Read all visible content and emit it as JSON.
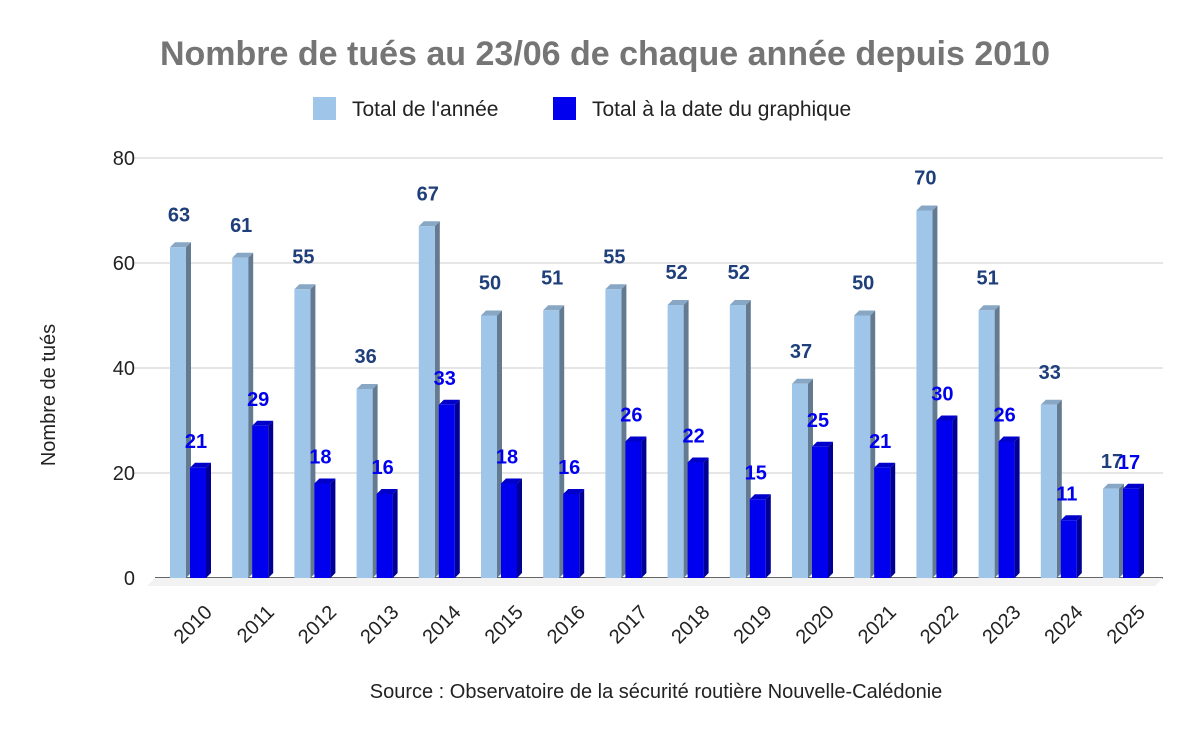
{
  "chart_data": {
    "type": "bar",
    "title": "Nombre de tués au 23/06 de chaque année depuis 2010",
    "ylabel": "Nombre de tués",
    "xlabel": "",
    "source": "Source : Observatoire de la sécurité routière Nouvelle-Calédonie",
    "ylim": [
      0,
      80
    ],
    "yticks": [
      0,
      20,
      40,
      60,
      80
    ],
    "grid": true,
    "legend_position": "top",
    "categories": [
      "2010",
      "2011",
      "2012",
      "2013",
      "2014",
      "2015",
      "2016",
      "2017",
      "2018",
      "2019",
      "2020",
      "2021",
      "2022",
      "2023",
      "2024",
      "2025"
    ],
    "series": [
      {
        "name": "Total de l'année",
        "color": "#9fc5e8",
        "label_color": "#1f3f7a",
        "values": [
          63,
          61,
          55,
          36,
          67,
          50,
          51,
          55,
          52,
          52,
          37,
          50,
          70,
          51,
          33,
          17
        ]
      },
      {
        "name": "Total à la date du graphique",
        "color": "#0000ee",
        "label_color": "#0000ee",
        "values": [
          21,
          29,
          18,
          16,
          33,
          18,
          16,
          26,
          22,
          15,
          25,
          21,
          30,
          26,
          11,
          17
        ]
      }
    ]
  }
}
